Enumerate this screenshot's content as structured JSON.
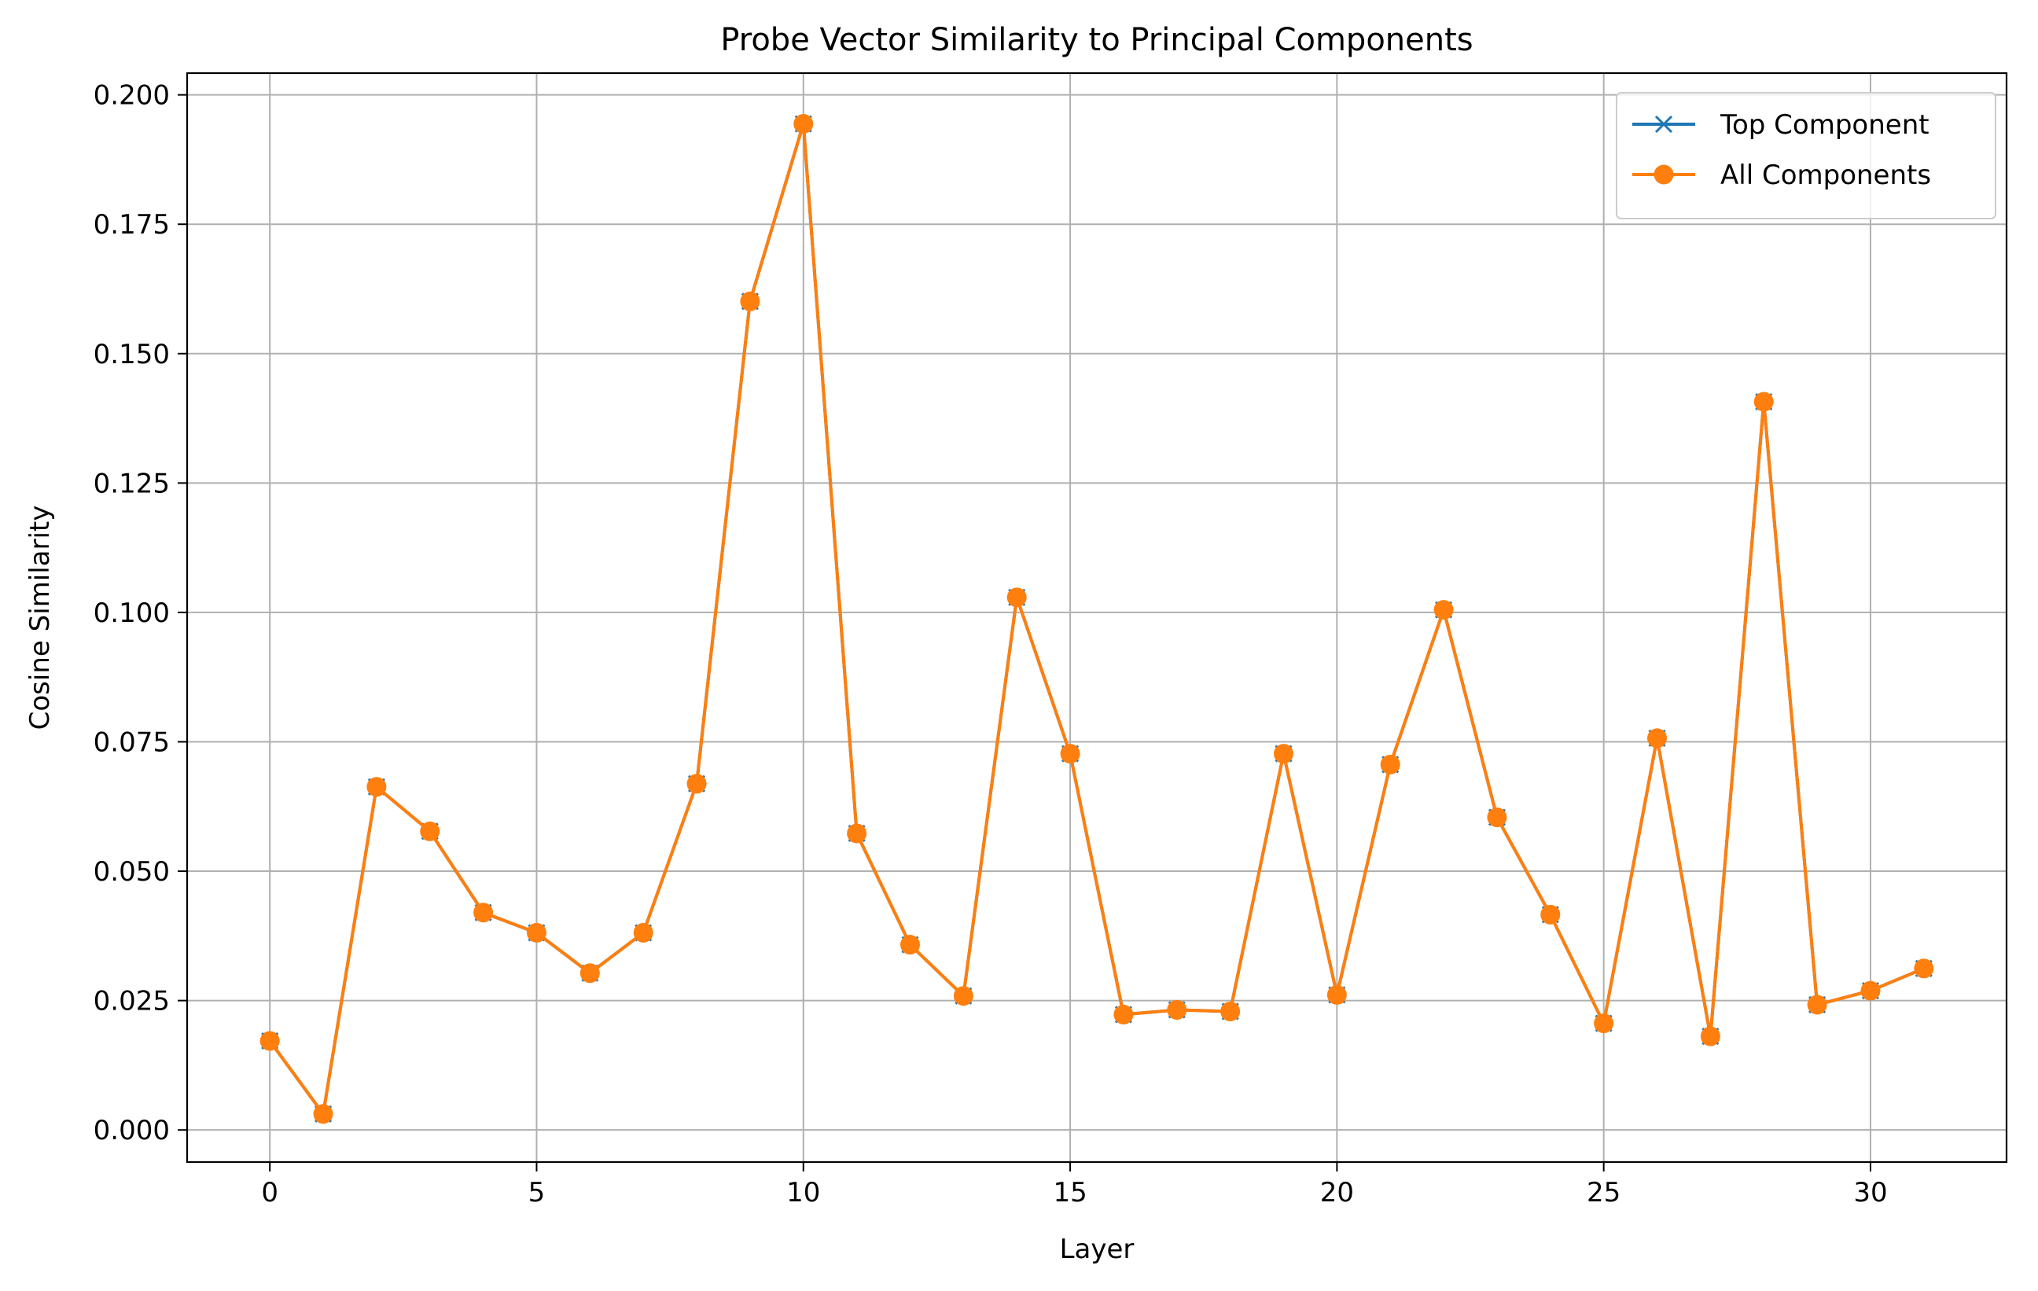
{
  "chart_data": {
    "type": "line",
    "title": "Probe Vector Similarity to Principal Components",
    "xlabel": "Layer",
    "ylabel": "Cosine Similarity",
    "xlim": [
      -1.55,
      32.55
    ],
    "ylim": [
      -0.0062,
      0.2042
    ],
    "xticks": [
      0,
      5,
      10,
      15,
      20,
      25,
      30
    ],
    "xtick_labels": [
      "0",
      "5",
      "10",
      "15",
      "20",
      "25",
      "30"
    ],
    "yticks": [
      0.0,
      0.025,
      0.05,
      0.075,
      0.1,
      0.125,
      0.15,
      0.175,
      0.2
    ],
    "ytick_labels": [
      "0.000",
      "0.025",
      "0.050",
      "0.075",
      "0.100",
      "0.125",
      "0.150",
      "0.175",
      "0.200"
    ],
    "grid": true,
    "legend_position": "top-right",
    "x": [
      0,
      1,
      2,
      3,
      4,
      5,
      6,
      7,
      8,
      9,
      10,
      11,
      12,
      13,
      14,
      15,
      16,
      17,
      18,
      19,
      20,
      21,
      22,
      23,
      24,
      25,
      26,
      27,
      28,
      29,
      30,
      31
    ],
    "series": [
      {
        "name": "Top Component",
        "marker": "x",
        "color": "#1f77b4",
        "values": [
          0.0172,
          0.0031,
          0.0663,
          0.0577,
          0.042,
          0.0381,
          0.0303,
          0.0381,
          0.0669,
          0.1601,
          0.1944,
          0.0573,
          0.0358,
          0.0259,
          0.1029,
          0.0727,
          0.0223,
          0.0232,
          0.0229,
          0.0727,
          0.0261,
          0.0706,
          0.1005,
          0.0604,
          0.0416,
          0.0206,
          0.0757,
          0.0181,
          0.1407,
          0.0242,
          0.0269,
          0.0312
        ]
      },
      {
        "name": "All Components",
        "marker": "o",
        "color": "#ff7f0e",
        "values": [
          0.0172,
          0.0031,
          0.0663,
          0.0577,
          0.042,
          0.0381,
          0.0303,
          0.0381,
          0.0669,
          0.1601,
          0.1944,
          0.0573,
          0.0358,
          0.0259,
          0.1029,
          0.0727,
          0.0223,
          0.0232,
          0.0229,
          0.0727,
          0.0261,
          0.0706,
          0.1005,
          0.0604,
          0.0416,
          0.0206,
          0.0757,
          0.0181,
          0.1407,
          0.0242,
          0.0269,
          0.0312
        ]
      }
    ]
  }
}
